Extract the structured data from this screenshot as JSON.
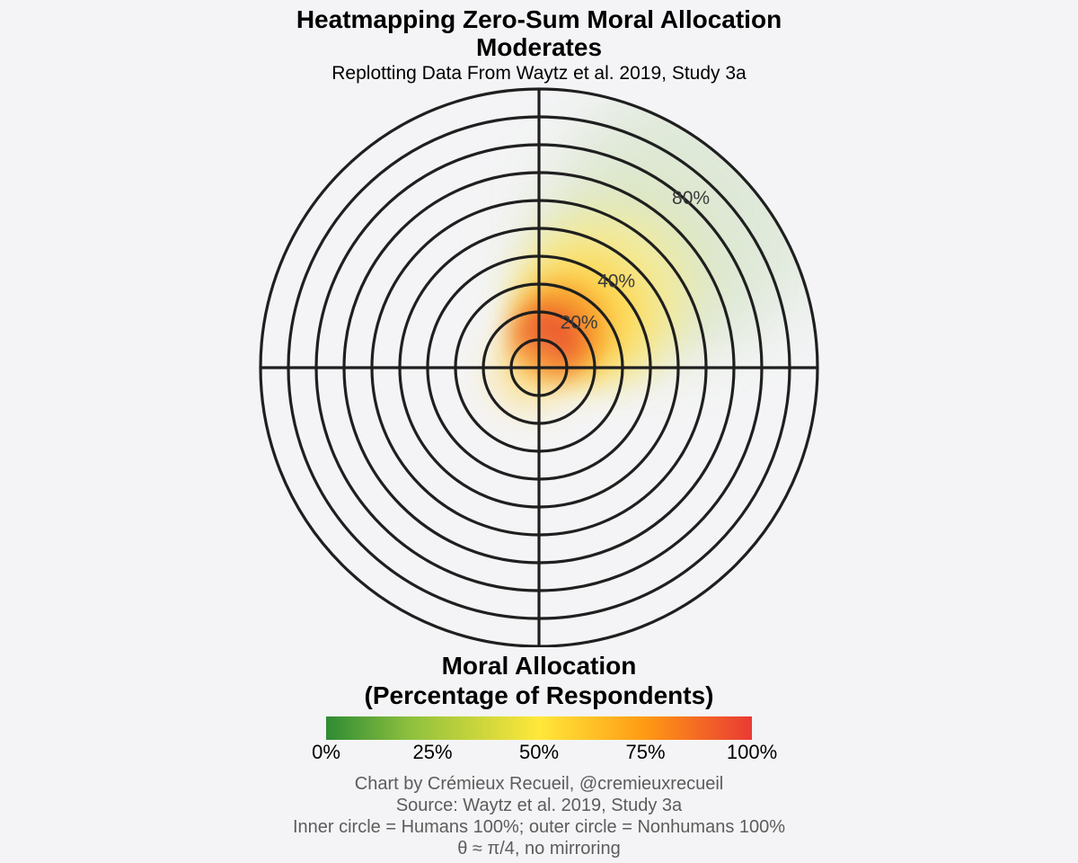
{
  "title_line1": "Heatmapping Zero-Sum Moral Allocation",
  "title_line2": "Moderates",
  "subtitle": "Replotting Data From Waytz et al. 2019, Study 3a",
  "legend": {
    "title_line1": "Moral Allocation",
    "title_line2": "(Percentage of Respondents)",
    "ticks": [
      "0%",
      "25%",
      "50%",
      "75%",
      "100%"
    ],
    "colors": [
      "#2e8b34",
      "#8fc13e",
      "#ffe83a",
      "#ff9a14",
      "#e93a34"
    ]
  },
  "captions": [
    "Chart by Crémieux Recueil, @cremieuxrecueil",
    "Source: Waytz et al. 2019, Study 3a",
    "Inner circle = Humans 100%; outer circle = Nonhumans 100%",
    "θ ≈ π/4, no mirroring"
  ],
  "chart_data": {
    "type": "heatmap",
    "projection": "polar",
    "ring_count": 10,
    "ring_labels": [
      {
        "label": "20%",
        "ring": 2
      },
      {
        "label": "40%",
        "ring": 4
      },
      {
        "label": "80%",
        "ring": 8
      }
    ],
    "density_peaks": [
      {
        "ring": 1.0,
        "angle_deg": 70,
        "intensity": 1.0
      },
      {
        "ring": 2.5,
        "angle_deg": 50,
        "intensity": 0.6
      },
      {
        "ring": 5.0,
        "angle_deg": 50,
        "intensity": 0.3
      },
      {
        "ring": 8.0,
        "angle_deg": 45,
        "intensity": 0.12
      }
    ],
    "grid": true
  }
}
